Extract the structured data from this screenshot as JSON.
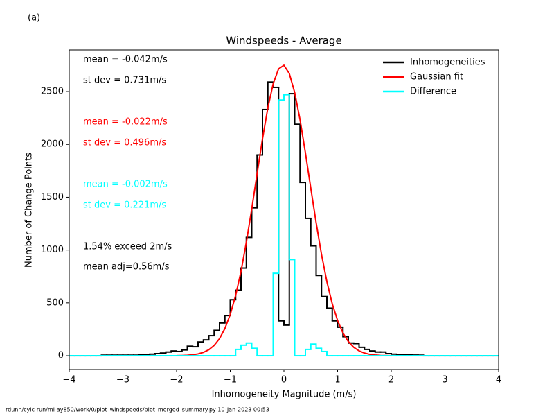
{
  "panel_label": "(a)",
  "footer": "rdunn/cylc-run/mi-ay850/work/0/plot_windspeeds/plot_merged_summary.py   10-Jan-2023 00:53",
  "chart_data": {
    "type": "histogram",
    "title": "Windspeeds - Average",
    "x_label": "Inhomogeneity Magnitude (m/s)",
    "y_label": "Number of Change Points",
    "xlim": [
      -4,
      4
    ],
    "xticks": [
      {
        "value": -4,
        "label": "−4"
      },
      {
        "value": -3,
        "label": "−3"
      },
      {
        "value": -2,
        "label": "−2"
      },
      {
        "value": -1,
        "label": "−1"
      },
      0,
      1,
      2,
      3,
      4
    ],
    "ylim": [
      -131,
      2894
    ],
    "yticks": [
      0,
      500,
      1000,
      1500,
      2000,
      2500
    ],
    "legend": "upper right",
    "bins": [
      -4.0,
      -3.9,
      -3.8,
      -3.7,
      -3.6,
      -3.5,
      -3.4,
      -3.3,
      -3.2,
      -3.1,
      -3.0,
      -2.9,
      -2.8,
      -2.7,
      -2.6,
      -2.5,
      -2.4,
      -2.3,
      -2.2,
      -2.1,
      -2.0,
      -1.9,
      -1.8,
      -1.7,
      -1.6,
      -1.5,
      -1.4,
      -1.3,
      -1.2,
      -1.1,
      -1.0,
      -0.9,
      -0.8,
      -0.7,
      -0.6,
      -0.5,
      -0.4,
      -0.3,
      -0.2,
      -0.1,
      0.0,
      0.1,
      0.2,
      0.3,
      0.4,
      0.5,
      0.6,
      0.7,
      0.8,
      0.9,
      1.0,
      1.1,
      1.2,
      1.3,
      1.4,
      1.5,
      1.6,
      1.7,
      1.8,
      1.9,
      2.0,
      2.1,
      2.2,
      2.3,
      2.4,
      2.5,
      2.6,
      2.7,
      2.8,
      2.9,
      3.0,
      3.1,
      3.2,
      3.3,
      3.4,
      3.5,
      3.6,
      3.7,
      3.8,
      3.9,
      4.0
    ],
    "series": [
      {
        "name": "Inhomogeneities",
        "color": "#000000",
        "values": [
          0,
          0,
          0,
          0,
          0,
          0,
          5,
          5,
          5,
          5,
          5,
          5,
          5,
          10,
          12,
          15,
          20,
          25,
          35,
          45,
          40,
          55,
          90,
          85,
          130,
          150,
          190,
          240,
          310,
          380,
          530,
          620,
          830,
          1120,
          1400,
          1900,
          2330,
          2590,
          2540,
          330,
          290,
          2480,
          2190,
          1640,
          1300,
          1040,
          760,
          560,
          450,
          330,
          270,
          180,
          120,
          115,
          80,
          60,
          45,
          35,
          35,
          20,
          15,
          12,
          10,
          8,
          6,
          5,
          0,
          0,
          0,
          0,
          0,
          0,
          0,
          0,
          0,
          0,
          0,
          0,
          0,
          0
        ]
      },
      {
        "name": "Gaussian fit",
        "color": "#ff0000",
        "x": [
          -2.0,
          -1.9,
          -1.8,
          -1.7,
          -1.6,
          -1.5,
          -1.4,
          -1.3,
          -1.2,
          -1.1,
          -1.0,
          -0.9,
          -0.8,
          -0.7,
          -0.6,
          -0.5,
          -0.4,
          -0.3,
          -0.2,
          -0.1,
          0.0,
          0.1,
          0.2,
          0.3,
          0.4,
          0.5,
          0.6,
          0.7,
          0.8,
          0.9,
          1.0,
          1.1,
          1.2,
          1.3,
          1.4,
          1.5,
          1.6,
          1.7,
          1.8,
          1.9,
          2.0
        ],
        "values": [
          1,
          2,
          4,
          9,
          17,
          32,
          57,
          98,
          162,
          257,
          391,
          570,
          797,
          1075,
          1388,
          1722,
          2051,
          2345,
          2575,
          2715,
          2749,
          2671,
          2492,
          2234,
          1921,
          1587,
          1259,
          959,
          701,
          492,
          333,
          215,
          134,
          80,
          46,
          25,
          13,
          7,
          3,
          2,
          1
        ]
      },
      {
        "name": "Difference",
        "color": "#00ffff",
        "values": [
          0,
          0,
          0,
          0,
          0,
          0,
          0,
          0,
          0,
          0,
          0,
          0,
          0,
          0,
          0,
          0,
          0,
          0,
          0,
          0,
          0,
          0,
          0,
          0,
          0,
          0,
          0,
          0,
          0,
          0,
          0,
          60,
          100,
          120,
          70,
          0,
          0,
          0,
          780,
          2420,
          2470,
          910,
          0,
          0,
          60,
          110,
          70,
          40,
          0,
          0,
          0,
          0,
          0,
          0,
          0,
          0,
          0,
          0,
          0,
          0,
          0,
          0,
          0,
          0,
          0,
          0,
          0,
          0,
          0,
          0,
          0,
          0,
          0,
          0,
          0,
          0,
          0,
          0,
          0,
          0
        ]
      }
    ],
    "annotations": [
      {
        "text": "mean = -0.042m/s",
        "color": "#000000"
      },
      {
        "text": "st dev =  0.731m/s",
        "color": "#000000"
      },
      {
        "text": "mean = -0.022m/s",
        "color": "#ff0000"
      },
      {
        "text": "st dev =  0.496m/s",
        "color": "#ff0000"
      },
      {
        "text": "mean = -0.002m/s",
        "color": "#00ffff"
      },
      {
        "text": "st dev =  0.221m/s",
        "color": "#00ffff"
      },
      {
        "text": "1.54% exceed 2m/s",
        "color": "#000000"
      },
      {
        "text": "mean adj=0.56m/s",
        "color": "#000000"
      }
    ]
  }
}
